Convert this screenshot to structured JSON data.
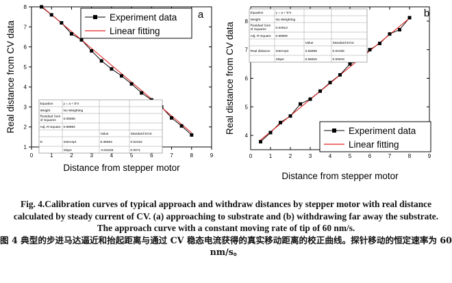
{
  "chart_data": [
    {
      "panel_label": "a",
      "type": "line",
      "xlabel": "Distance from stepper motor",
      "ylabel": "Real distance from CV data",
      "xlim": [
        0,
        9
      ],
      "ylim": [
        1,
        8
      ],
      "xticks": [
        0,
        1,
        2,
        3,
        4,
        5,
        6,
        7,
        8,
        9
      ],
      "yticks": [
        1,
        2,
        3,
        4,
        5,
        6,
        7,
        8
      ],
      "legend_position": "top-center",
      "series": [
        {
          "name": "Experiment data",
          "style": "line+square-markers",
          "color": "#000000",
          "x": [
            0.5,
            1,
            1.5,
            2,
            2.5,
            3,
            3.5,
            4,
            4.5,
            5,
            5.5,
            6,
            6.5,
            7,
            7.5,
            8
          ],
          "y": [
            8.0,
            7.6,
            7.2,
            6.65,
            6.35,
            5.8,
            5.3,
            4.9,
            4.55,
            4.15,
            3.7,
            3.35,
            3.0,
            2.45,
            2.05,
            1.6
          ]
        },
        {
          "name": "Linear fitting",
          "style": "line",
          "color": "#e02020",
          "x": [
            0.5,
            8
          ],
          "y": [
            8.03,
            1.71
          ]
        }
      ],
      "fit_table": {
        "rows": [
          [
            "Equation",
            "y = a + b*x",
            "",
            ""
          ],
          [
            "Weight",
            "No Weighting",
            "",
            ""
          ],
          [
            "Residual Sum of Squares",
            "0.05565",
            "",
            ""
          ],
          [
            "Adj. R-Square",
            "0.99894",
            "",
            ""
          ],
          [
            "",
            "",
            "Value",
            "Standard Error"
          ],
          [
            "D",
            "Intercept",
            "8.36563",
            "0.02432"
          ],
          [
            "",
            "Slope",
            "-0.84325",
            "0.0071"
          ]
        ]
      }
    },
    {
      "panel_label": "b",
      "type": "line",
      "xlabel": "Distance from stepper motor",
      "ylabel": "Real distance from CV data",
      "xlim": [
        0,
        9
      ],
      "ylim": [
        3.5,
        8.5
      ],
      "xticks": [
        0,
        1,
        2,
        3,
        4,
        5,
        6,
        7,
        8,
        9
      ],
      "yticks": [
        4,
        5,
        6,
        7,
        8
      ],
      "legend_position": "bottom-right",
      "series": [
        {
          "name": "Experiment data",
          "style": "line+square-markers",
          "color": "#000000",
          "x": [
            0.5,
            1,
            1.5,
            2,
            2.5,
            3,
            3.5,
            4,
            4.5,
            5,
            5.5,
            6,
            6.5,
            7,
            7.5,
            8
          ],
          "y": [
            3.78,
            4.1,
            4.45,
            4.68,
            5.1,
            5.27,
            5.55,
            5.85,
            6.12,
            6.5,
            6.65,
            7.0,
            7.22,
            7.55,
            7.7,
            8.12
          ]
        },
        {
          "name": "Linear fitting",
          "style": "line",
          "color": "#e02020",
          "x": [
            0.5,
            8
          ],
          "y": [
            3.84,
            8.1
          ]
        }
      ],
      "fit_table": {
        "rows": [
          [
            "Equation",
            "y = a + b*x",
            "",
            ""
          ],
          [
            "Weight",
            "No Weighting",
            "",
            ""
          ],
          [
            "Residual Sum of Squares",
            "0.04913",
            "",
            ""
          ],
          [
            "Adj. R-Square",
            "0.99809",
            "",
            ""
          ],
          [
            "",
            "",
            "Value",
            "Standard Error"
          ],
          [
            "Real distance",
            "Intercept",
            "3.55868",
            "0.03106"
          ],
          [
            "",
            "Slope",
            "0.56815",
            "0.00643"
          ]
        ]
      }
    }
  ],
  "caption": {
    "english": "Fig. 4.Calibration curves of typical approach and withdraw distances by stepper motor with real distance calculated by steady current of CV. (a) approaching to substrate and (b) withdrawing far away the substrate. The approach curve with a constant moving rate of tip of 60 nm/s.",
    "chinese": "图 4 典型的步进马达逼近和抬起距离与通过 CV 稳态电流获得的真实移动距离的校正曲线。探针移动的恒定速率为 60 nm/s。"
  }
}
